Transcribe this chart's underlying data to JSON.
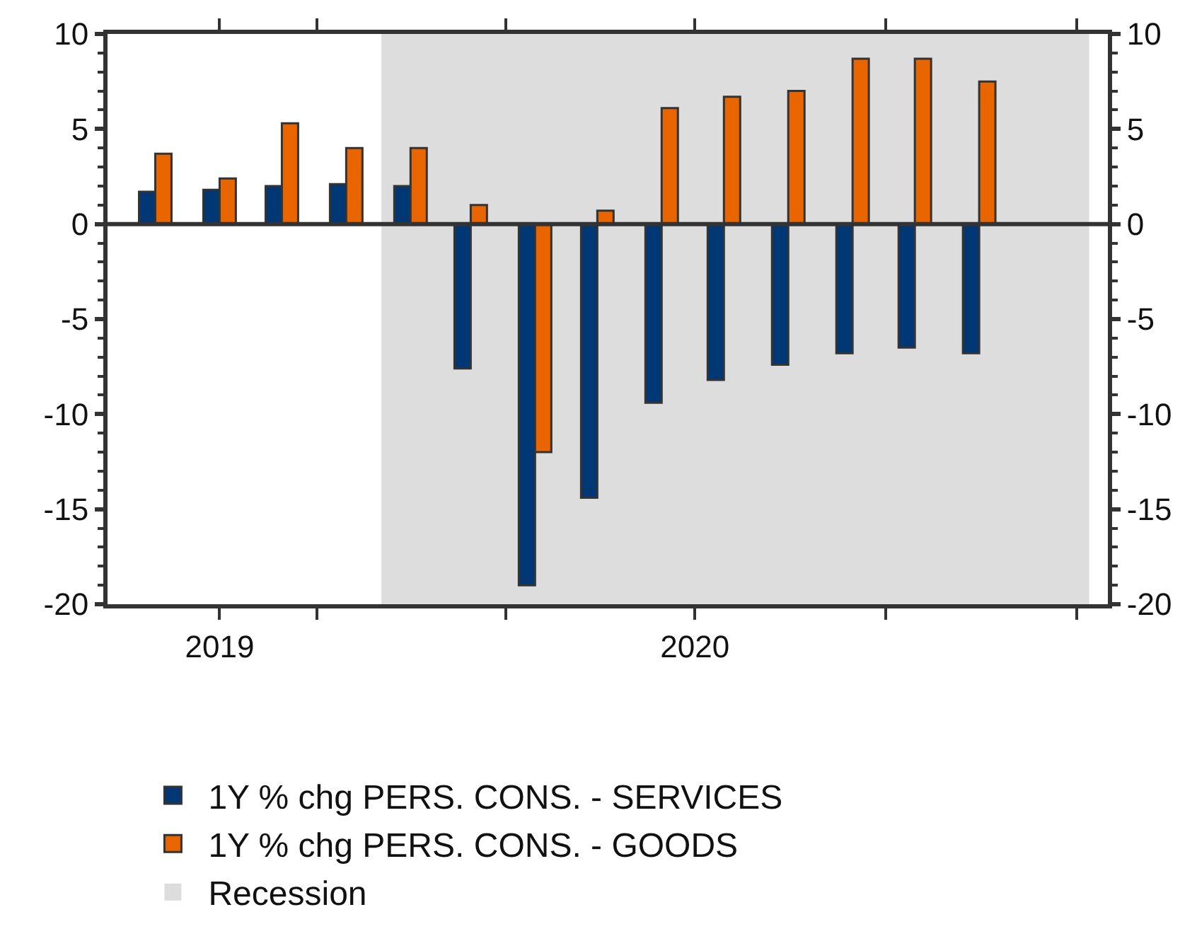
{
  "chart_data": {
    "type": "bar",
    "x": [
      "2019-10-15",
      "2019-11-15",
      "2019-12-15",
      "2020-01-15",
      "2020-02-15",
      "2020-03-15",
      "2020-04-15",
      "2020-05-15",
      "2020-06-15",
      "2020-07-15",
      "2020-08-15",
      "2020-09-15",
      "2020-10-15",
      "2020-11-15"
    ],
    "series": [
      {
        "name": "1Y % chg PERS. CONS. - SERVICES",
        "color": "#003875",
        "values": [
          1.7,
          1.8,
          2.0,
          2.1,
          2.0,
          -7.6,
          -19.0,
          -14.4,
          -9.4,
          -8.2,
          -7.4,
          -6.8,
          -6.5,
          -6.8
        ]
      },
      {
        "name": "1Y % chg PERS. CONS. - GOODS",
        "color": "#e86500",
        "values": [
          3.7,
          2.4,
          5.3,
          4.0,
          4.0,
          1.0,
          -12.0,
          0.7,
          6.1,
          6.7,
          7.0,
          8.7,
          8.7,
          7.5
        ]
      }
    ],
    "xlim": [
      "2019-09-22",
      "2021-01-16"
    ],
    "xticks": [
      {
        "value": "2019-11-15",
        "label": "2019"
      },
      {
        "value": "2020-01-01",
        "label": null
      },
      {
        "value": "2020-04-01",
        "label": null
      },
      {
        "value": "2020-07-01",
        "label": "2020"
      },
      {
        "value": "2020-10-01",
        "label": null
      },
      {
        "value": "2021-01-01",
        "label": null
      }
    ],
    "ylim": [
      -20,
      10
    ],
    "yticks": [
      -20,
      -15,
      -10,
      -5,
      0,
      5,
      10
    ],
    "y2lim": [
      -20,
      10
    ],
    "y2ticks": [
      -20,
      -15,
      -10,
      -5,
      0,
      5,
      10
    ],
    "bands": [
      {
        "axis": "x",
        "from": "2020-02-01",
        "to": "2021-01-07",
        "label": "Recession",
        "color": "#dddddd"
      }
    ],
    "ref_lines": [
      {
        "axis": "y",
        "value": 0,
        "color": "#333333"
      }
    ],
    "grid": false,
    "legend": "bottom"
  }
}
